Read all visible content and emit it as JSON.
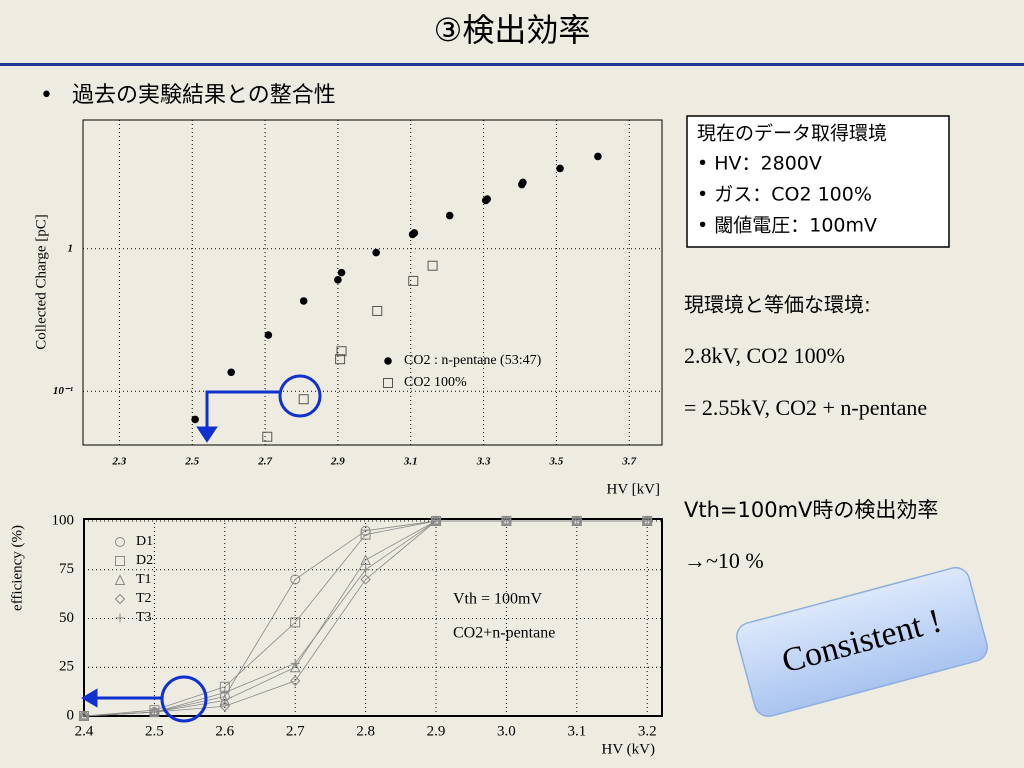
{
  "slide": {
    "title": "③検出効率",
    "bullet": "過去の実験結果との整合性",
    "box": [
      "現在のデータ取得環境",
      "• HV：2800V",
      "• ガス：CO2 100%",
      "• 閾値電圧：100mV"
    ],
    "notes": [
      "現環境と等価な環境:",
      "2.8kV, CO2 100%",
      "= 2.55kV, CO2 + n-pentane",
      "Vth=100mV時の検出効率",
      "→~10 %"
    ],
    "badge": "Consistent !"
  },
  "chart_data": [
    {
      "type": "scatter",
      "xlabel": "HV [kV]",
      "ylabel": "Collected Charge  [pC]",
      "xlim": [
        2.2,
        3.79
      ],
      "xticks": [
        2.3,
        2.5,
        2.7,
        2.9,
        3.1,
        3.3,
        3.5,
        3.7
      ],
      "ylim": [
        0.042,
        8
      ],
      "ylog": true,
      "yticks": [
        {
          "value": 0.1,
          "label": "10⁻¹"
        },
        1
      ],
      "grid": true,
      "legend": "center-right",
      "series": [
        {
          "name": "CO2 : n-pentane (53:47)",
          "color": "#000000",
          "marker": "filled-circle",
          "x": [
            2.508,
            2.607,
            2.709,
            2.806,
            2.9,
            2.91,
            3.005,
            3.105,
            3.11,
            3.207,
            3.306,
            3.31,
            3.405,
            3.408,
            3.51,
            3.614
          ],
          "values": [
            0.0635,
            0.136,
            0.248,
            0.43,
            0.605,
            0.68,
            0.94,
            1.26,
            1.29,
            1.71,
            2.18,
            2.23,
            2.82,
            2.92,
            3.66,
            4.44
          ]
        },
        {
          "name": "CO2 100%",
          "color": "#555555",
          "marker": "open-square",
          "x": [
            2.706,
            2.806,
            2.906,
            2.91,
            3.008,
            3.107,
            3.16
          ],
          "values": [
            0.048,
            0.088,
            0.168,
            0.191,
            0.366,
            0.595,
            0.76
          ]
        }
      ]
    },
    {
      "type": "line",
      "xlabel": "HV (kV)",
      "ylabel": "efficiency (%)",
      "annotations": [
        "Vth = 100mV",
        "CO2+n-pentane"
      ],
      "xlim": [
        2.4,
        3.221
      ],
      "xticks": [
        2.4,
        2.5,
        2.6,
        2.7,
        2.8,
        2.9,
        {
          "value": 3,
          "label": "3.0"
        },
        3.1,
        3.2
      ],
      "ylim": [
        0,
        101
      ],
      "yticks": [
        0,
        25,
        50,
        75,
        100
      ],
      "grid": true,
      "legend": "upper-left",
      "x": [
        2.4,
        2.5,
        2.6,
        2.7,
        2.8,
        2.9,
        3.0,
        3.1,
        3.2
      ],
      "series": [
        {
          "name": "D1",
          "color": "#888888",
          "marker": "circle",
          "values": [
            0,
            2,
            10,
            70,
            95,
            100,
            100,
            100,
            100
          ]
        },
        {
          "name": "D2",
          "color": "#888888",
          "marker": "square",
          "values": [
            0,
            3,
            15,
            48,
            93,
            100,
            100,
            100,
            100
          ]
        },
        {
          "name": "T1",
          "color": "#888888",
          "marker": "triangle",
          "values": [
            0,
            2,
            8,
            25,
            80,
            100,
            100,
            100,
            100
          ]
        },
        {
          "name": "T2",
          "color": "#888888",
          "marker": "diamond",
          "values": [
            0,
            2,
            5,
            18,
            70,
            100,
            100,
            100,
            100
          ]
        },
        {
          "name": "T3",
          "color": "#888888",
          "marker": "cross",
          "values": [
            0,
            2,
            12,
            27,
            75,
            100,
            100,
            100,
            100
          ]
        }
      ]
    }
  ]
}
